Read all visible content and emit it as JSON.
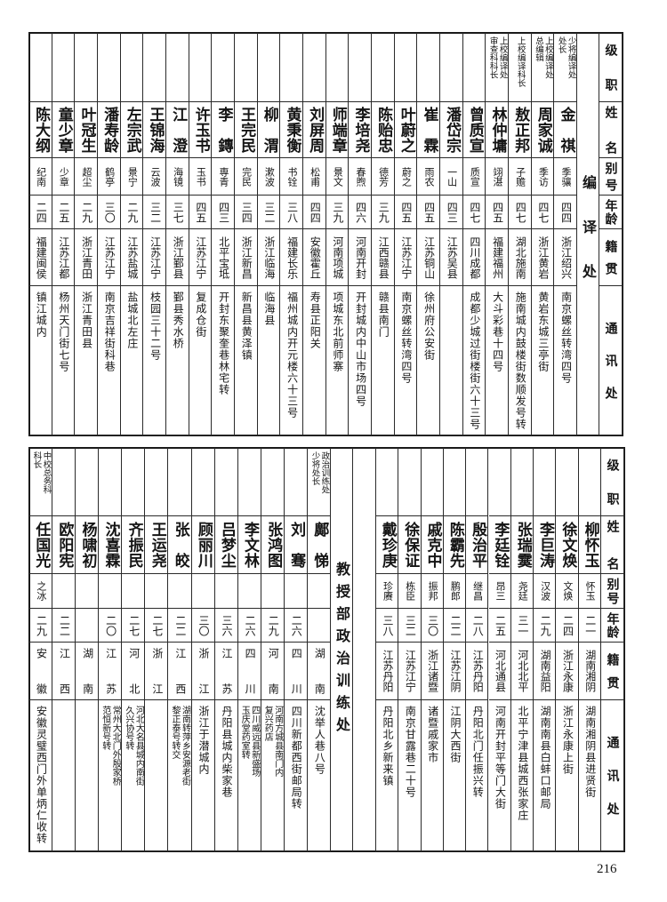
{
  "page_number": "216",
  "headers": {
    "position": "级职",
    "name": "姓名",
    "alias": "别号",
    "age": "年龄",
    "native": "籍贯",
    "address": "通讯处"
  },
  "top_table": {
    "section": "编译处",
    "rows": [
      {
        "position": "少将编译处\n处长",
        "name": "金祺",
        "alias": "季骧",
        "age": "四四",
        "native": "浙江绍兴",
        "address": "南京螺丝转湾四号"
      },
      {
        "position": "上校编译处\n总编辑",
        "name": "周家诚",
        "alias": "季访",
        "age": "四七",
        "native": "浙江黄岩",
        "address": "黄岩东城三亭街"
      },
      {
        "position": "上校编译科长",
        "name": "敖正邦",
        "alias": "子赡",
        "age": "四七",
        "native": "湖北施南",
        "address": "施南城内鼓楼街数顺发号转"
      },
      {
        "position": "上校编译处\n审查科科长",
        "name": "林仲墉",
        "alias": "翊湛",
        "age": "四五",
        "native": "福建福州",
        "address": "大斗彩巷十四号"
      },
      {
        "position": "",
        "name": "曾质宣",
        "alias": "质宣",
        "age": "四七",
        "native": "四川成都",
        "address": "成都少城过街楼街六十三号"
      },
      {
        "position": "",
        "name": "潘岱宗",
        "alias": "一山",
        "age": "四三",
        "native": "江苏吴县",
        "address": ""
      },
      {
        "position": "",
        "name": "崔霖",
        "alias": "雨农",
        "age": "四五",
        "native": "江苏铜山",
        "address": "徐州府公安街"
      },
      {
        "position": "",
        "name": "叶蔚之",
        "alias": "蔚之",
        "age": "四五",
        "native": "江苏江宁",
        "address": "南京螺丝转湾四号"
      },
      {
        "position": "",
        "name": "陈贻忠",
        "alias": "德芳",
        "age": "三九",
        "native": "江西赣县",
        "address": "赣县南门"
      },
      {
        "position": "",
        "name": "李培尧",
        "alias": "春煦",
        "age": "四六",
        "native": "河南开封",
        "address": "开封城内中山市场四号"
      },
      {
        "position": "",
        "name": "师端章",
        "alias": "景文",
        "age": "三九",
        "native": "河南项城",
        "address": "项城东北前师寨"
      },
      {
        "position": "",
        "name": "刘屏周",
        "alias": "松甫",
        "age": "四四",
        "native": "安徽霍丘",
        "address": "寿县正阳关"
      },
      {
        "position": "",
        "name": "黄秉衡",
        "alias": "书铨",
        "age": "三八",
        "native": "福建长乐",
        "address": "福州城内开元楼六十三号"
      },
      {
        "position": "",
        "name": "柳渭",
        "alias": "漱波",
        "age": "三二",
        "native": "浙江临海",
        "address": "临海县"
      },
      {
        "position": "",
        "name": "王完民",
        "alias": "完民",
        "age": "三四",
        "native": "浙江新昌",
        "address": "新昌县黄泽镇"
      },
      {
        "position": "",
        "name": "李鏄",
        "alias": "専青",
        "age": "四三",
        "native": "北平宝坻",
        "address": "开封东聚奎巷林宅转"
      },
      {
        "position": "",
        "name": "许玉书",
        "alias": "玉书",
        "age": "四五",
        "native": "江苏江宁",
        "address": "复成仓街"
      },
      {
        "position": "",
        "name": "江澄",
        "alias": "海镜",
        "age": "三七",
        "native": "浙江鄞县",
        "address": "鄞县秀水桥"
      },
      {
        "position": "",
        "name": "王锦海",
        "alias": "云波",
        "age": "三二",
        "native": "江苏江宁",
        "address": "枝园三十二号"
      },
      {
        "position": "",
        "name": "左宗武",
        "alias": "景宁",
        "age": "二九",
        "native": "江苏盐城",
        "address": "盐城北左庄"
      },
      {
        "position": "",
        "name": "潘寿龄",
        "alias": "鹤亭",
        "age": "三〇",
        "native": "江苏江宁",
        "address": "南京吉祥街科巷"
      },
      {
        "position": "",
        "name": "叶冠生",
        "alias": "超尘",
        "age": "二九",
        "native": "浙江青田",
        "address": "浙江青田县"
      },
      {
        "position": "",
        "name": "童少章",
        "alias": "少章",
        "age": "二五",
        "native": "江苏江都",
        "address": "杨州天门街七号"
      },
      {
        "position": "",
        "name": "陈大纲",
        "alias": "纪南",
        "age": "二四",
        "native": "福建闽侯",
        "address": "镇江城内"
      }
    ]
  },
  "bottom_table": {
    "section": "教授部政治训练处",
    "rows_right": [
      {
        "position": "",
        "name": "柳怀玉",
        "alias": "怀玉",
        "age": "二一",
        "native": "湖南湘阴",
        "address": "湖南湘阴县进贤街"
      },
      {
        "position": "",
        "name": "徐文焕",
        "alias": "文焕",
        "age": "二四",
        "native": "浙江永康",
        "address": "浙江永康上街"
      },
      {
        "position": "",
        "name": "李巨涛",
        "alias": "汉波",
        "age": "二九",
        "native": "湖南益阳",
        "address": "湖南南县白蚌口邮局"
      },
      {
        "position": "",
        "name": "张瑞霙",
        "alias": "尧廷",
        "age": "三一",
        "native": "河北北平",
        "address": "北平宁津县城西张家庄"
      },
      {
        "position": "",
        "name": "李廷铨",
        "alias": "昂三",
        "age": "二五",
        "native": "河北通县",
        "address": "河南开封平等门大街"
      },
      {
        "position": "",
        "name": "殷治平",
        "alias": "继昌",
        "age": "二八",
        "native": "江苏丹阳",
        "address": "丹阳北门任振兴转"
      },
      {
        "position": "",
        "name": "陈霸先",
        "alias": "鹏郎",
        "age": "二二",
        "native": "江苏江阴",
        "address": "江阴大西街"
      },
      {
        "position": "",
        "name": "戚克中",
        "alias": "振邦",
        "age": "三〇",
        "native": "浙江诸暨",
        "address": "诸暨戚家市"
      },
      {
        "position": "",
        "name": "徐保证",
        "alias": "栋臣",
        "age": "三二",
        "native": "江苏江宁",
        "address": "南京甘露巷二十号"
      },
      {
        "position": "",
        "name": "戴珍庚",
        "alias": "珍赓",
        "age": "三八",
        "native": "江苏丹阳",
        "address": "丹阳北乡新来镇"
      }
    ],
    "rows_left": [
      {
        "position": "政治训练处\n少将处长",
        "name": "鄺悌",
        "alias": "",
        "age": "",
        "native": "湖南",
        "address": "沈举人巷八号"
      },
      {
        "position": "",
        "name": "刘骞",
        "alias": "",
        "age": "二六",
        "native": "四川",
        "address": "四川新都西街邮局转"
      },
      {
        "position": "",
        "name": "张鸿图",
        "alias": "",
        "age": "二九",
        "native": "河南",
        "address": "河南方城县南门内\n复兴药店"
      },
      {
        "position": "",
        "name": "李文林",
        "alias": "",
        "age": "二六",
        "native": "四川",
        "address": "四川威远县新盛场\n玉庆堂药室转"
      },
      {
        "position": "",
        "name": "吕梦尘",
        "alias": "",
        "age": "三六",
        "native": "江苏",
        "address": "丹阳县城内柴家巷"
      },
      {
        "position": "",
        "name": "顾丽川",
        "alias": "",
        "age": "三〇",
        "native": "浙江",
        "address": "浙江于潜城内"
      },
      {
        "position": "",
        "name": "张皎",
        "alias": "",
        "age": "二二",
        "native": "江西",
        "address": "湖南转萍乡安源老街\n黎正泰号转交"
      },
      {
        "position": "",
        "name": "王运尧",
        "alias": "",
        "age": "二七",
        "native": "浙江",
        "address": ""
      },
      {
        "position": "",
        "name": "齐振民",
        "alias": "",
        "age": "二七",
        "native": "河北",
        "address": "河北大名县城内南街\n久兴协号转"
      },
      {
        "position": "",
        "name": "沈喜霖",
        "alias": "",
        "age": "二〇",
        "native": "江苏",
        "address": "常州大北门外殷家桥\n范恒新号转"
      },
      {
        "position": "",
        "name": "杨啸初",
        "alias": "",
        "age": "",
        "native": "湖南",
        "address": ""
      },
      {
        "position": "",
        "name": "欧阳宪",
        "alias": "",
        "age": "二二",
        "native": "江西",
        "address": ""
      },
      {
        "position": "中校总务科\n科长",
        "name": "任国光",
        "alias": "之冰",
        "age": "二九",
        "native": "安徽",
        "address": "安徽灵璧西门外单炳仁收转"
      }
    ]
  }
}
